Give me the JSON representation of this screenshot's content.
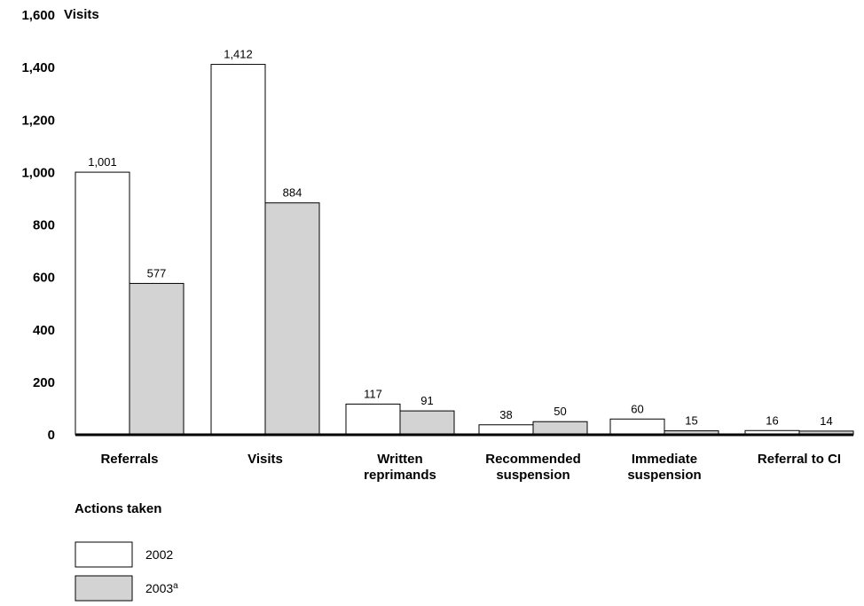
{
  "chart_data": {
    "type": "bar",
    "ylabel": "Visits",
    "xlabel": "Actions taken",
    "ylim": [
      0,
      1600
    ],
    "yticks": [
      "0",
      "200",
      "400",
      "600",
      "800",
      "1,000",
      "1,200",
      "1,400",
      "1,600"
    ],
    "categories": [
      [
        "Referrals"
      ],
      [
        "Visits"
      ],
      [
        "Written",
        "reprimands"
      ],
      [
        "Recommended",
        "suspension"
      ],
      [
        "Immediate",
        "suspension"
      ],
      [
        "Referral to CI"
      ]
    ],
    "series": [
      {
        "name": "2002",
        "values": [
          1001,
          1412,
          117,
          38,
          60,
          16
        ],
        "labels": [
          "1,001",
          "1,412",
          "117",
          "38",
          "60",
          "16"
        ],
        "color": "#ffffff"
      },
      {
        "name": "2003",
        "name_sup": "a",
        "values": [
          577,
          884,
          91,
          50,
          15,
          14
        ],
        "labels": [
          "577",
          "884",
          "91",
          "50",
          "15",
          "14"
        ],
        "color": "#d3d3d3"
      }
    ],
    "grid": false,
    "legend": "bottom-left"
  }
}
